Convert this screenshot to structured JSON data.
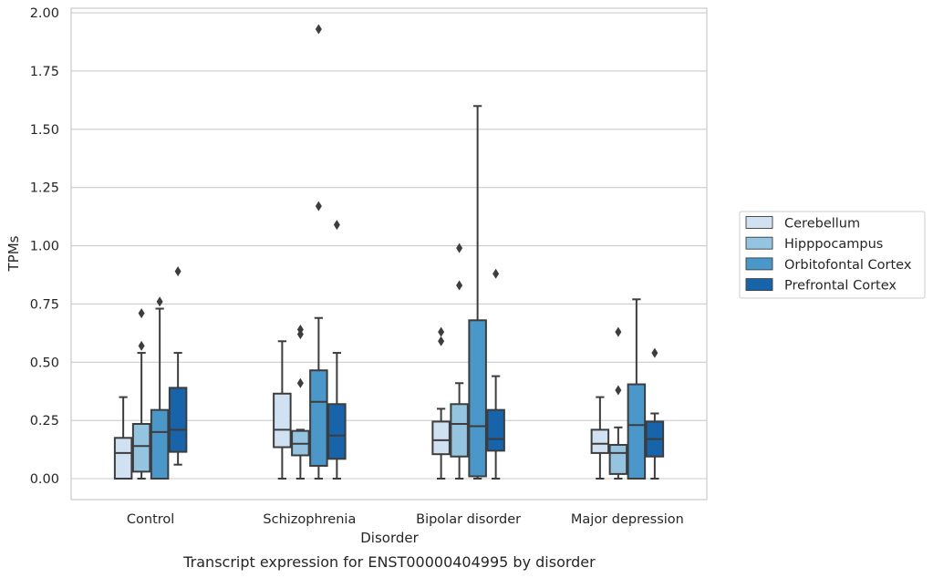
{
  "chart_data": {
    "type": "box",
    "title": "",
    "caption": "Transcript expression for ENST00000404995 by disorder",
    "xlabel": "Disorder",
    "ylabel": "TPMs",
    "ylim": [
      -0.09,
      2.02
    ],
    "yticks": [
      0.0,
      0.25,
      0.5,
      0.75,
      1.0,
      1.25,
      1.5,
      1.75,
      2.0
    ],
    "ytick_labels": [
      "0.00",
      "0.25",
      "0.50",
      "0.75",
      "1.00",
      "1.25",
      "1.50",
      "1.75",
      "2.00"
    ],
    "grid": true,
    "legend_position": "right",
    "categories": [
      "Control",
      "Schizophrenia",
      "Bipolar disorder",
      "Major depression"
    ],
    "series": [
      {
        "name": "Cerebellum",
        "color": "#d0e1f2",
        "boxes": [
          {
            "whislo": 0.0,
            "q1": 0.0,
            "med": 0.11,
            "q3": 0.175,
            "whishi": 0.35,
            "fliers": []
          },
          {
            "whislo": 0.0,
            "q1": 0.135,
            "med": 0.21,
            "q3": 0.365,
            "whishi": 0.59,
            "fliers": []
          },
          {
            "whislo": 0.0,
            "q1": 0.105,
            "med": 0.165,
            "q3": 0.245,
            "whishi": 0.3,
            "fliers": [
              0.59,
              0.63
            ]
          },
          {
            "whislo": 0.0,
            "q1": 0.11,
            "med": 0.15,
            "q3": 0.21,
            "whishi": 0.35,
            "fliers": []
          }
        ]
      },
      {
        "name": "Hipppocampus",
        "color": "#94c4df",
        "boxes": [
          {
            "whislo": 0.0,
            "q1": 0.03,
            "med": 0.14,
            "q3": 0.235,
            "whishi": 0.54,
            "fliers": [
              0.57,
              0.71
            ]
          },
          {
            "whislo": 0.0,
            "q1": 0.1,
            "med": 0.15,
            "q3": 0.205,
            "whishi": 0.21,
            "fliers": [
              0.41,
              0.62,
              0.64
            ]
          },
          {
            "whislo": 0.0,
            "q1": 0.095,
            "med": 0.235,
            "q3": 0.32,
            "whishi": 0.41,
            "fliers": [
              0.83,
              0.99
            ]
          },
          {
            "whislo": 0.0,
            "q1": 0.02,
            "med": 0.11,
            "q3": 0.145,
            "whishi": 0.22,
            "fliers": [
              0.38,
              0.63
            ]
          }
        ]
      },
      {
        "name": "Orbitofontal Cortex",
        "color": "#4a98c9",
        "boxes": [
          {
            "whislo": 0.0,
            "q1": 0.0,
            "med": 0.2,
            "q3": 0.295,
            "whishi": 0.73,
            "fliers": [
              0.76
            ]
          },
          {
            "whislo": 0.0,
            "q1": 0.055,
            "med": 0.33,
            "q3": 0.465,
            "whishi": 0.69,
            "fliers": [
              1.17,
              1.93
            ]
          },
          {
            "whislo": 0.0,
            "q1": 0.01,
            "med": 0.225,
            "q3": 0.68,
            "whishi": 1.6,
            "fliers": []
          },
          {
            "whislo": 0.0,
            "q1": 0.0,
            "med": 0.23,
            "q3": 0.405,
            "whishi": 0.77,
            "fliers": []
          }
        ]
      },
      {
        "name": "Prefrontal Cortex",
        "color": "#1764ab",
        "boxes": [
          {
            "whislo": 0.06,
            "q1": 0.115,
            "med": 0.21,
            "q3": 0.39,
            "whishi": 0.54,
            "fliers": [
              0.89
            ]
          },
          {
            "whislo": 0.0,
            "q1": 0.085,
            "med": 0.185,
            "q3": 0.32,
            "whishi": 0.54,
            "fliers": [
              1.09
            ]
          },
          {
            "whislo": 0.0,
            "q1": 0.12,
            "med": 0.17,
            "q3": 0.295,
            "whishi": 0.44,
            "fliers": [
              0.88
            ]
          },
          {
            "whislo": 0.0,
            "q1": 0.095,
            "med": 0.17,
            "q3": 0.245,
            "whishi": 0.28,
            "fliers": [
              0.54
            ]
          }
        ]
      }
    ]
  }
}
